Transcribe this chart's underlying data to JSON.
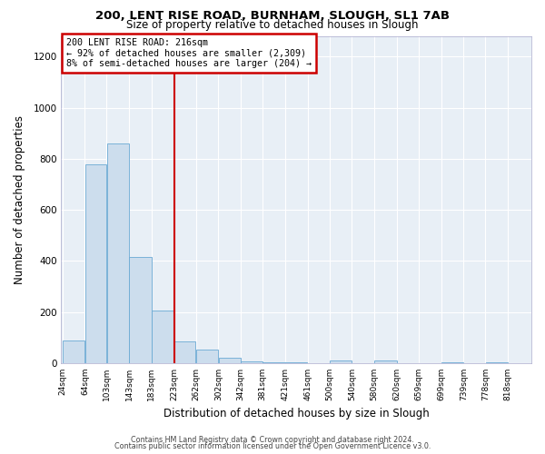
{
  "title1": "200, LENT RISE ROAD, BURNHAM, SLOUGH, SL1 7AB",
  "title2": "Size of property relative to detached houses in Slough",
  "xlabel": "Distribution of detached houses by size in Slough",
  "ylabel": "Number of detached properties",
  "bar_color": "#ccdded",
  "bar_edge_color": "#6aaad4",
  "vline_x": 223,
  "vline_color": "#cc0000",
  "annotation_title": "200 LENT RISE ROAD: 216sqm",
  "annotation_line1": "← 92% of detached houses are smaller (2,309)",
  "annotation_line2": "8% of semi-detached houses are larger (204) →",
  "annotation_box_color": "#cc0000",
  "bin_labels": [
    "24sqm",
    "64sqm",
    "103sqm",
    "143sqm",
    "183sqm",
    "223sqm",
    "262sqm",
    "302sqm",
    "342sqm",
    "381sqm",
    "421sqm",
    "461sqm",
    "500sqm",
    "540sqm",
    "580sqm",
    "620sqm",
    "659sqm",
    "699sqm",
    "739sqm",
    "778sqm",
    "818sqm"
  ],
  "bin_edges": [
    24,
    64,
    103,
    143,
    183,
    223,
    262,
    302,
    342,
    381,
    421,
    461,
    500,
    540,
    580,
    620,
    659,
    699,
    739,
    778,
    818,
    858
  ],
  "heights": [
    90,
    780,
    860,
    415,
    205,
    85,
    52,
    22,
    8,
    5,
    5,
    0,
    10,
    0,
    10,
    0,
    0,
    5,
    0,
    5,
    0
  ],
  "ylim": [
    0,
    1280
  ],
  "yticks": [
    0,
    200,
    400,
    600,
    800,
    1000,
    1200
  ],
  "footer1": "Contains HM Land Registry data © Crown copyright and database right 2024.",
  "footer2": "Contains public sector information licensed under the Open Government Licence v3.0.",
  "bg_color": "#e8eff6",
  "grid_color": "#ffffff"
}
